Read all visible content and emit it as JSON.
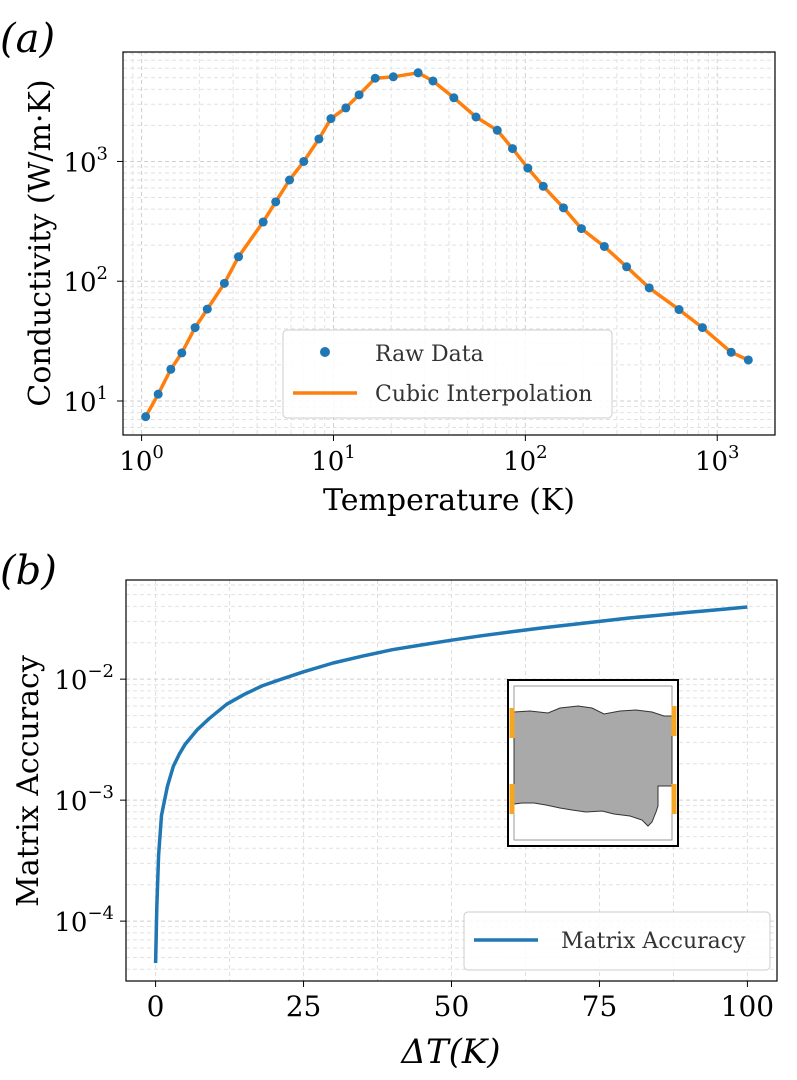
{
  "chart_data": [
    {
      "panel_label": "(a)",
      "type": "line",
      "xscale": "log",
      "yscale": "log",
      "xlabel": "Temperature (K)",
      "ylabel": "Conductivity (W/m·K)",
      "xlim": [
        0.8,
        2000
      ],
      "ylim": [
        5.2,
        8200
      ],
      "grid": true,
      "legend_position": "lower-center",
      "x_ticks": [
        {
          "value": 1,
          "base": "10",
          "exp": "0"
        },
        {
          "value": 10,
          "base": "10",
          "exp": "1"
        },
        {
          "value": 100,
          "base": "10",
          "exp": "2"
        },
        {
          "value": 1000,
          "base": "10",
          "exp": "3"
        }
      ],
      "y_ticks": [
        {
          "value": 10,
          "base": "10",
          "exp": "1"
        },
        {
          "value": 100,
          "base": "10",
          "exp": "2"
        },
        {
          "value": 1000,
          "base": "10",
          "exp": "3"
        }
      ],
      "series": [
        {
          "name": "Raw Data",
          "style": "markers",
          "color": "#1f77b4",
          "x": [
            1.05,
            1.22,
            1.42,
            1.62,
            1.9,
            2.2,
            2.7,
            3.2,
            4.3,
            5.0,
            5.9,
            7.0,
            8.4,
            9.7,
            11.6,
            13.6,
            16.5,
            20.5,
            27.6,
            33.0,
            42.4,
            55.3,
            71.4,
            85.7,
            103,
            124,
            158,
            196,
            258,
            337,
            442,
            632,
            837,
            1182,
            1452
          ],
          "y": [
            7.4,
            11.4,
            18.4,
            25.2,
            41.0,
            58.5,
            96.0,
            160,
            312,
            460,
            700,
            1000,
            1540,
            2280,
            2800,
            3600,
            4950,
            5090,
            5500,
            4700,
            3400,
            2350,
            1820,
            1280,
            880,
            620,
            410,
            275,
            195,
            132,
            88,
            58,
            41,
            25.5,
            22.0
          ]
        },
        {
          "name": "Cubic Interpolation",
          "style": "line",
          "color": "#ff7f0e",
          "x": [
            1.05,
            1.22,
            1.42,
            1.62,
            1.9,
            2.2,
            2.7,
            3.2,
            4.3,
            5.0,
            5.9,
            7.0,
            8.4,
            9.7,
            11.6,
            13.6,
            16.5,
            20.5,
            27.6,
            33.0,
            42.4,
            55.3,
            71.4,
            85.7,
            103,
            124,
            158,
            196,
            258,
            337,
            442,
            632,
            837,
            1182,
            1452
          ],
          "y": [
            7.4,
            11.4,
            18.4,
            25.2,
            41.0,
            58.5,
            96.0,
            160,
            312,
            460,
            700,
            1000,
            1540,
            2280,
            2800,
            3600,
            4950,
            5090,
            5500,
            4700,
            3400,
            2350,
            1820,
            1280,
            880,
            620,
            410,
            275,
            195,
            132,
            88,
            58,
            41,
            25.5,
            22.0
          ]
        }
      ]
    },
    {
      "panel_label": "(b)",
      "type": "line",
      "xscale": "linear",
      "yscale": "log",
      "xlabel": "ΔT(K)",
      "ylabel": "Matrix Accuracy",
      "xlim": [
        -5,
        105
      ],
      "ylim": [
        3.2e-05,
        0.066
      ],
      "grid": true,
      "legend_position": "lower-right",
      "x_ticks": [
        {
          "value": 0,
          "label": "0"
        },
        {
          "value": 25,
          "label": "25"
        },
        {
          "value": 50,
          "label": "50"
        },
        {
          "value": 75,
          "label": "75"
        },
        {
          "value": 100,
          "label": "100"
        }
      ],
      "y_ticks": [
        {
          "value": 0.0001,
          "base": "10",
          "exp": "−4"
        },
        {
          "value": 0.001,
          "base": "10",
          "exp": "−3"
        },
        {
          "value": 0.01,
          "base": "10",
          "exp": "−2"
        }
      ],
      "series": [
        {
          "name": "Matrix Accuracy",
          "style": "line",
          "color": "#1f77b4",
          "x": [
            0,
            0.2,
            0.5,
            1,
            2,
            3,
            4,
            5,
            7,
            9,
            12,
            15,
            18,
            21,
            25,
            30,
            35,
            40,
            45,
            50,
            55,
            60,
            65,
            70,
            75,
            80,
            85,
            90,
            95,
            100
          ],
          "y": [
            4.5e-05,
            0.00013,
            0.00035,
            0.00075,
            0.0013,
            0.0019,
            0.0024,
            0.0029,
            0.0038,
            0.0047,
            0.0062,
            0.0075,
            0.0088,
            0.0099,
            0.0115,
            0.0136,
            0.0155,
            0.0175,
            0.0192,
            0.021,
            0.0228,
            0.0246,
            0.0264,
            0.0282,
            0.03,
            0.032,
            0.0338,
            0.0356,
            0.0375,
            0.0395
          ]
        }
      ],
      "inset": "grey-domain-with-orange-contacts"
    }
  ]
}
